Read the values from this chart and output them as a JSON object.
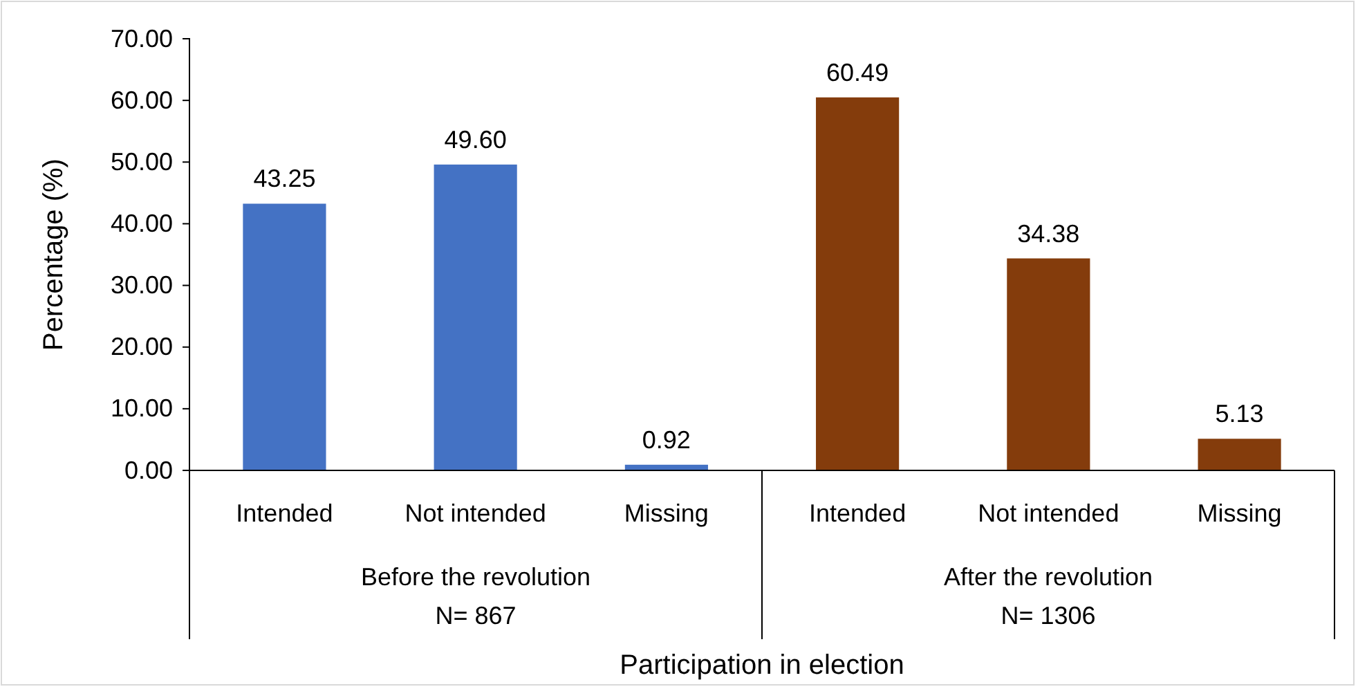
{
  "chart_data": {
    "type": "bar",
    "categories": [
      "Intended",
      "Not intended",
      "Missing",
      "Intended",
      "Not intended",
      "Missing"
    ],
    "values": [
      43.25,
      49.6,
      0.92,
      60.49,
      34.38,
      5.13
    ],
    "colors": [
      "#4472c4",
      "#4472c4",
      "#4472c4",
      "#843c0c",
      "#843c0c",
      "#843c0c"
    ],
    "value_labels": [
      "43.25",
      "49.60",
      "0.92",
      "60.49",
      "34.38",
      "5.13"
    ],
    "ylabel": "Percentage (%)",
    "xlabel": "Participation in election",
    "annotations": [
      "Before the revolution\nN= 867",
      "After the revolution\nN= 1306"
    ],
    "ylim": [
      0,
      70
    ],
    "yticks": [
      {
        "value": 0,
        "label": "0.00"
      },
      {
        "value": 10,
        "label": "10.00"
      },
      {
        "value": 20,
        "label": "20.00"
      },
      {
        "value": 30,
        "label": "30.00"
      },
      {
        "value": 40,
        "label": "40.00"
      },
      {
        "value": 50,
        "label": "50.00"
      },
      {
        "value": 60,
        "label": "60.00"
      },
      {
        "value": 70,
        "label": "70.00"
      }
    ]
  }
}
